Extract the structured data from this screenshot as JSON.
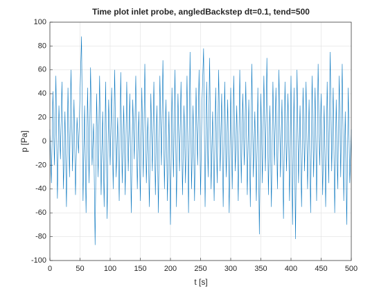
{
  "chart_data": {
    "type": "line",
    "title": "Time plot inlet probe, angledBackstep dt=0.1, tend=500",
    "xlabel": "t [s]",
    "ylabel": "p [Pa]",
    "color": "#0072bd",
    "grid": true,
    "xlim": [
      0,
      500
    ],
    "ylim": [
      -100,
      100
    ],
    "xticks": [
      0,
      50,
      100,
      150,
      200,
      250,
      300,
      350,
      400,
      450,
      500
    ],
    "yticks": [
      -100,
      -80,
      -60,
      -40,
      -20,
      0,
      20,
      40,
      60,
      80,
      100
    ],
    "x": [
      0,
      2.5,
      5,
      7.5,
      10,
      12.5,
      15,
      17.5,
      20,
      22.5,
      25,
      27.5,
      30,
      32.5,
      35,
      37.5,
      40,
      42.5,
      45,
      47.5,
      50,
      52.5,
      55,
      57.5,
      60,
      62.5,
      65,
      67.5,
      70,
      72.5,
      75,
      77.5,
      80,
      82.5,
      85,
      87.5,
      90,
      92.5,
      95,
      97.5,
      100,
      102.5,
      105,
      107.5,
      110,
      112.5,
      115,
      117.5,
      120,
      122.5,
      125,
      127.5,
      130,
      132.5,
      135,
      137.5,
      140,
      142.5,
      145,
      147.5,
      150,
      152.5,
      155,
      157.5,
      160,
      162.5,
      165,
      167.5,
      170,
      172.5,
      175,
      177.5,
      180,
      182.5,
      185,
      187.5,
      190,
      192.5,
      195,
      197.5,
      200,
      202.5,
      205,
      207.5,
      210,
      212.5,
      215,
      217.5,
      220,
      222.5,
      225,
      227.5,
      230,
      232.5,
      235,
      237.5,
      240,
      242.5,
      245,
      247.5,
      250,
      252.5,
      255,
      257.5,
      260,
      262.5,
      265,
      267.5,
      270,
      272.5,
      275,
      277.5,
      280,
      282.5,
      285,
      287.5,
      290,
      292.5,
      295,
      297.5,
      300,
      302.5,
      305,
      307.5,
      310,
      312.5,
      315,
      317.5,
      320,
      322.5,
      325,
      327.5,
      330,
      332.5,
      335,
      337.5,
      340,
      342.5,
      345,
      347.5,
      350,
      352.5,
      355,
      357.5,
      360,
      362.5,
      365,
      367.5,
      370,
      372.5,
      375,
      377.5,
      380,
      382.5,
      385,
      387.5,
      390,
      392.5,
      395,
      397.5,
      400,
      402.5,
      405,
      407.5,
      410,
      412.5,
      415,
      417.5,
      420,
      422.5,
      425,
      427.5,
      430,
      432.5,
      435,
      437.5,
      440,
      442.5,
      445,
      447.5,
      450,
      452.5,
      455,
      457.5,
      460,
      462.5,
      465,
      467.5,
      470,
      472.5,
      475,
      477.5,
      480,
      482.5,
      485,
      487.5,
      490,
      492.5,
      495,
      497.5,
      500
    ],
    "values": [
      10,
      -35,
      42,
      -20,
      55,
      -48,
      30,
      -15,
      50,
      -40,
      25,
      -55,
      45,
      -30,
      60,
      -25,
      35,
      -45,
      20,
      -10,
      40,
      88,
      -50,
      30,
      -60,
      45,
      -35,
      62,
      -20,
      15,
      -87,
      40,
      -30,
      55,
      -45,
      25,
      -55,
      50,
      -65,
      35,
      -20,
      45,
      -40,
      60,
      -30,
      20,
      -50,
      58,
      -35,
      30,
      -45,
      50,
      -25,
      40,
      -60,
      35,
      -15,
      55,
      -40,
      25,
      -50,
      45,
      -30,
      65,
      -35,
      20,
      -55,
      40,
      -25,
      50,
      -45,
      30,
      -60,
      55,
      -20,
      68,
      -40,
      35,
      -50,
      25,
      -70,
      45,
      -30,
      60,
      -55,
      40,
      -25,
      50,
      -45,
      30,
      -35,
      55,
      -60,
      75,
      -40,
      30,
      -50,
      45,
      -20,
      60,
      -45,
      35,
      78,
      -55,
      50,
      -30,
      70,
      -40,
      25,
      -50,
      45,
      -35,
      60,
      -25,
      40,
      -55,
      50,
      -30,
      35,
      -60,
      45,
      -40,
      55,
      -25,
      30,
      -50,
      60,
      -35,
      40,
      -20,
      50,
      -45,
      35,
      -55,
      65,
      -30,
      25,
      -50,
      45,
      -78,
      40,
      -35,
      55,
      -25,
      70,
      -45,
      30,
      -55,
      50,
      -20,
      45,
      -40,
      60,
      -30,
      35,
      -65,
      50,
      -25,
      40,
      -50,
      55,
      -70,
      45,
      -82,
      60,
      -35,
      30,
      -55,
      45,
      -25,
      50,
      -40,
      35,
      -60,
      55,
      -30,
      45,
      -50,
      65,
      -20,
      40,
      -45,
      30,
      -55,
      50,
      -35,
      75,
      -25,
      45,
      -60,
      35,
      -40,
      55,
      -30,
      65,
      -50,
      25,
      -70,
      45,
      -35,
      10
    ]
  }
}
